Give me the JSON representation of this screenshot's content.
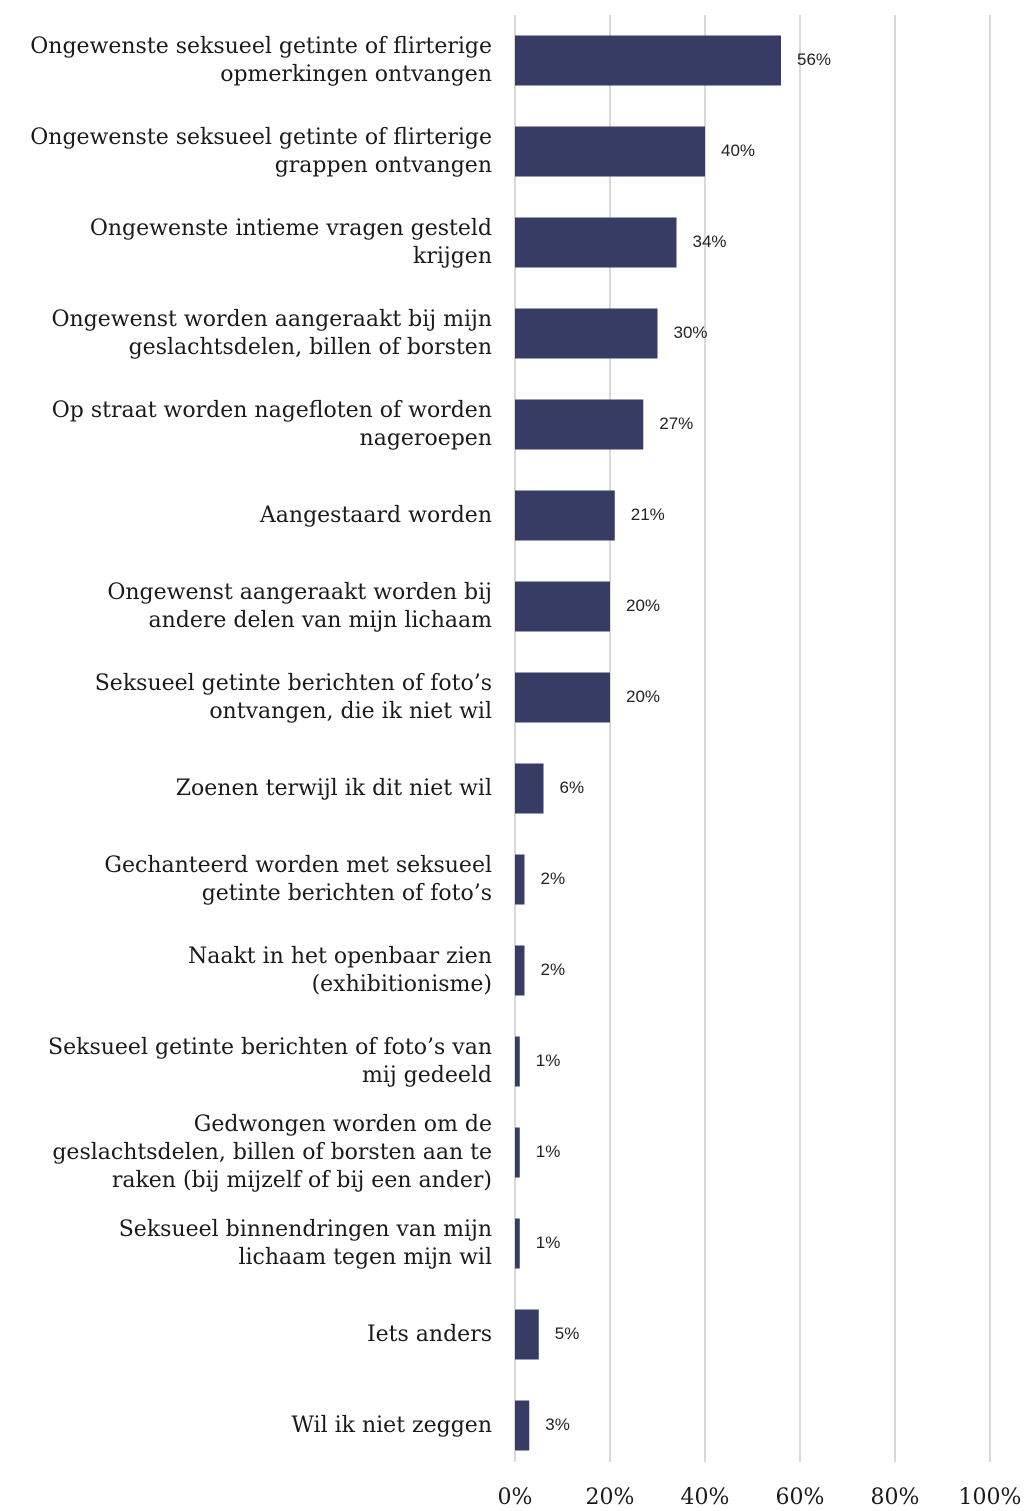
{
  "chart_data": {
    "type": "barh",
    "categories": [
      "Ongewenste seksueel getinte of flirterige\nopmerkingen ontvangen",
      "Ongewenste seksueel getinte of flirterige\ngrappen ontvangen",
      "Ongewenste intieme vragen gesteld\nkrijgen",
      "Ongewenst worden aangeraakt bij mijn\ngeslachtsdelen, billen of borsten",
      "Op straat worden nagefloten of worden\nnageroepen",
      "Aangestaard worden",
      "Ongewenst aangeraakt worden bij\nandere delen van mijn lichaam",
      "Seksueel getinte berichten of foto’s\nontvangen, die ik niet wil",
      "Zoenen terwijl ik dit niet wil",
      "Gechanteerd worden met seksueel\ngetinte berichten of foto’s",
      "Naakt in het openbaar zien\n(exhibitionisme)",
      "Seksueel getinte berichten of foto’s van\nmij gedeeld",
      "Gedwongen worden om de\ngeslachtsdelen, billen of borsten aan te\nraken (bij mijzelf of bij een ander)",
      "Seksueel binnendringen van mijn\nlichaam tegen mijn wil",
      "Iets anders",
      "Wil ik niet zeggen"
    ],
    "values": [
      56,
      40,
      34,
      30,
      27,
      21,
      20,
      20,
      6,
      2,
      2,
      1,
      1,
      1,
      5,
      3
    ],
    "value_labels": [
      "56%",
      "40%",
      "34%",
      "30%",
      "27%",
      "21%",
      "20%",
      "20%",
      "6%",
      "2%",
      "2%",
      "1%",
      "1%",
      "1%",
      "5%",
      "3%"
    ],
    "color": "#373c64",
    "xlim": [
      0,
      100
    ],
    "xticks": [
      {
        "value": 0,
        "label": "0%"
      },
      {
        "value": 20,
        "label": "20%"
      },
      {
        "value": 40,
        "label": "40%"
      },
      {
        "value": 60,
        "label": "60%"
      },
      {
        "value": 80,
        "label": "80%"
      },
      {
        "value": 100,
        "label": "100%"
      }
    ],
    "grid": true
  }
}
